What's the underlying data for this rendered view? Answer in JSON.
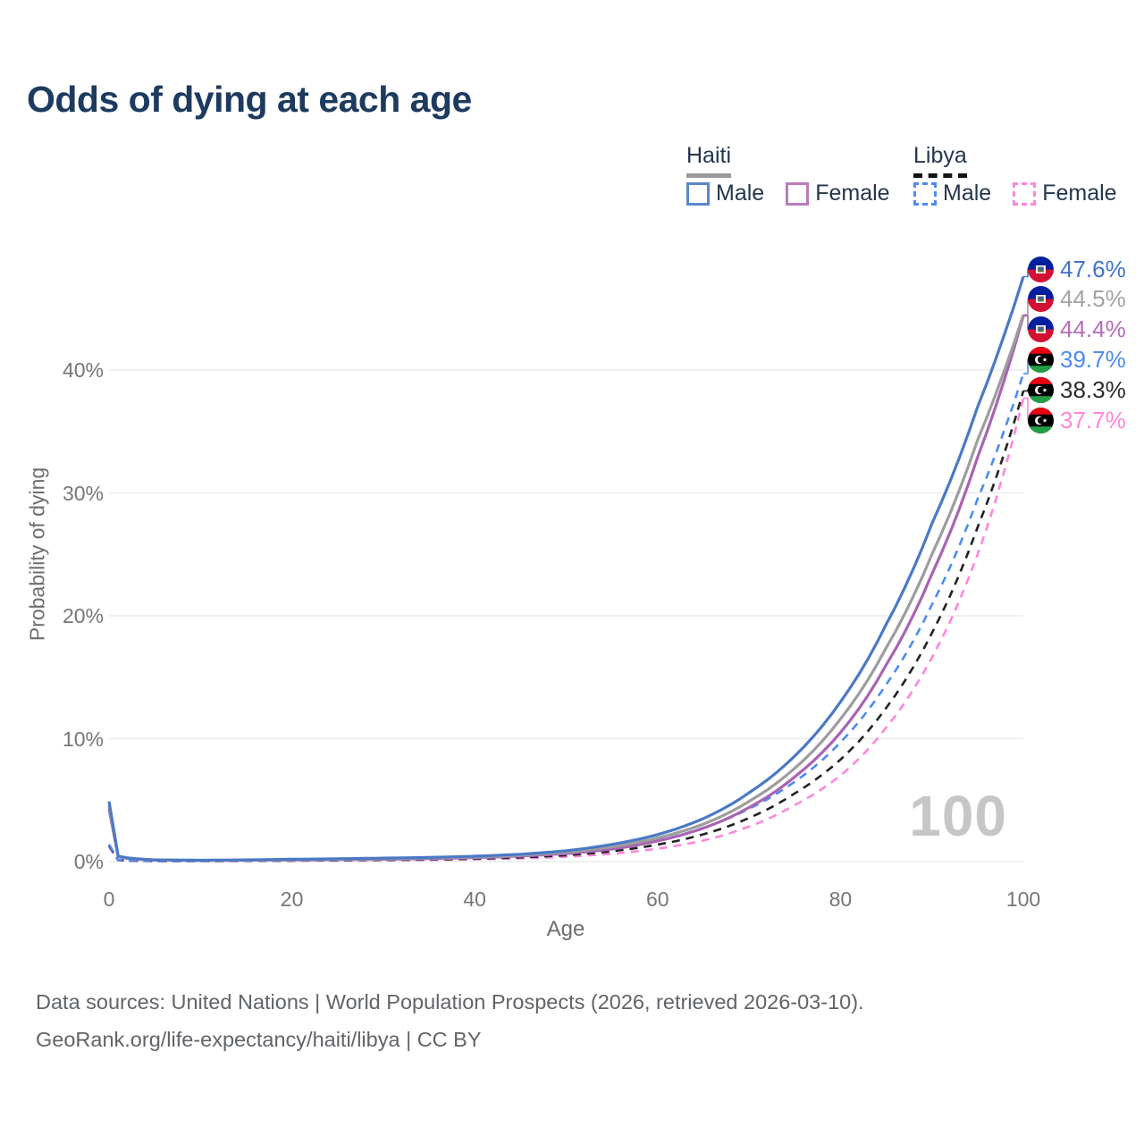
{
  "title": "Odds of dying at each age",
  "watermark": "100",
  "legend": {
    "groups": [
      {
        "name": "Haiti",
        "style": "solid",
        "underline_color": "#9a9a9a",
        "items": [
          {
            "label": "Male",
            "swatch_color": "#5b86c9",
            "swatch_style": "solid"
          },
          {
            "label": "Female",
            "swatch_color": "#bb7cbe",
            "swatch_style": "solid"
          }
        ]
      },
      {
        "name": "Libya",
        "style": "dashed",
        "underline_color": "#141414",
        "items": [
          {
            "label": "Male",
            "swatch_color": "#4b8bf5",
            "swatch_style": "dashed"
          },
          {
            "label": "Female",
            "swatch_color": "#ff85dc",
            "swatch_style": "dashed"
          }
        ]
      }
    ]
  },
  "chart_data": {
    "type": "line",
    "title": "Odds of dying at each age",
    "xlabel": "Age",
    "ylabel": "Probability of dying",
    "xlim": [
      0,
      100
    ],
    "ylim": [
      0,
      48
    ],
    "grid": "horizontal-only",
    "legend_position": "top-right",
    "x_ticks": [
      {
        "v": 0,
        "label": "0"
      },
      {
        "v": 20,
        "label": "20"
      },
      {
        "v": 40,
        "label": "40"
      },
      {
        "v": 60,
        "label": "60"
      },
      {
        "v": 80,
        "label": "80"
      },
      {
        "v": 100,
        "label": "100"
      }
    ],
    "y_ticks": [
      {
        "v": 0,
        "label": "0%"
      },
      {
        "v": 10,
        "label": "10%"
      },
      {
        "v": 20,
        "label": "20%"
      },
      {
        "v": 30,
        "label": "30%"
      },
      {
        "v": 40,
        "label": "40%"
      }
    ],
    "x": [
      0,
      1,
      2,
      5,
      10,
      15,
      20,
      25,
      30,
      35,
      40,
      45,
      50,
      55,
      60,
      65,
      70,
      75,
      80,
      85,
      90,
      95,
      100
    ],
    "series": [
      {
        "name": "Haiti Male",
        "country": "Haiti",
        "sex": "Male",
        "style": "solid",
        "color": "#4a79c6",
        "values": [
          4.9,
          0.45,
          0.3,
          0.14,
          0.11,
          0.14,
          0.19,
          0.23,
          0.28,
          0.34,
          0.44,
          0.6,
          0.88,
          1.4,
          2.2,
          3.5,
          5.6,
          8.6,
          13.0,
          19.3,
          27.5,
          37.0,
          47.6
        ]
      },
      {
        "name": "Haiti Both sexes",
        "country": "Haiti",
        "sex": "Both",
        "style": "solid",
        "color": "#9d9d9d",
        "values": [
          4.6,
          0.42,
          0.28,
          0.13,
          0.1,
          0.12,
          0.16,
          0.19,
          0.23,
          0.29,
          0.37,
          0.52,
          0.76,
          1.2,
          1.92,
          3.05,
          4.9,
          7.6,
          11.6,
          17.4,
          25.0,
          34.3,
          44.5
        ]
      },
      {
        "name": "Haiti Female",
        "country": "Haiti",
        "sex": "Female",
        "style": "solid",
        "color": "#a963b3",
        "values": [
          4.3,
          0.4,
          0.26,
          0.12,
          0.09,
          0.11,
          0.13,
          0.16,
          0.19,
          0.24,
          0.32,
          0.45,
          0.65,
          1.02,
          1.68,
          2.72,
          4.4,
          6.9,
          10.5,
          16.0,
          23.4,
          32.9,
          44.4
        ]
      },
      {
        "name": "Libya Male",
        "country": "Libya",
        "sex": "Male",
        "style": "dashed",
        "color": "#4b8bf5",
        "values": [
          1.4,
          0.13,
          0.09,
          0.05,
          0.045,
          0.065,
          0.1,
          0.13,
          0.16,
          0.21,
          0.29,
          0.42,
          0.65,
          1.05,
          1.72,
          2.75,
          4.3,
          6.5,
          9.7,
          14.4,
          20.9,
          29.5,
          39.7
        ]
      },
      {
        "name": "Libya Both sexes",
        "country": "Libya",
        "sex": "Both",
        "style": "dashed",
        "color": "#222222",
        "values": [
          1.3,
          0.12,
          0.08,
          0.045,
          0.04,
          0.055,
          0.08,
          0.1,
          0.13,
          0.17,
          0.23,
          0.34,
          0.52,
          0.84,
          1.38,
          2.22,
          3.55,
          5.55,
          8.3,
          12.5,
          18.6,
          27.2,
          38.3
        ]
      },
      {
        "name": "Libya Female",
        "country": "Libya",
        "sex": "Female",
        "style": "dashed",
        "color": "#ff85dc",
        "values": [
          1.2,
          0.11,
          0.07,
          0.04,
          0.035,
          0.045,
          0.065,
          0.08,
          0.1,
          0.13,
          0.18,
          0.26,
          0.4,
          0.64,
          1.05,
          1.72,
          2.85,
          4.6,
          7.0,
          10.9,
          16.6,
          25.0,
          37.7
        ]
      }
    ],
    "end_labels": [
      {
        "value": "47.6%",
        "text_color": "#3f74c9",
        "flag": "haiti"
      },
      {
        "value": "44.5%",
        "text_color": "#a3a3a3",
        "flag": "haiti"
      },
      {
        "value": "44.4%",
        "text_color": "#b66cba",
        "flag": "haiti"
      },
      {
        "value": "39.7%",
        "text_color": "#4b8bf5",
        "flag": "libya"
      },
      {
        "value": "38.3%",
        "text_color": "#2b2b2b",
        "flag": "libya"
      },
      {
        "value": "37.7%",
        "text_color": "#ff85dc",
        "flag": "libya"
      }
    ],
    "flag_colors": {
      "haiti_blue": "#00209F",
      "haiti_red": "#D21034",
      "libya_red": "#E70013",
      "libya_black": "#000000",
      "libya_green": "#239E46"
    }
  },
  "footer": {
    "line1": "Data sources: United Nations | World Population Prospects (2026, retrieved 2026-03-10).",
    "line2": "GeoRank.org/life-expectancy/haiti/libya | CC BY"
  }
}
